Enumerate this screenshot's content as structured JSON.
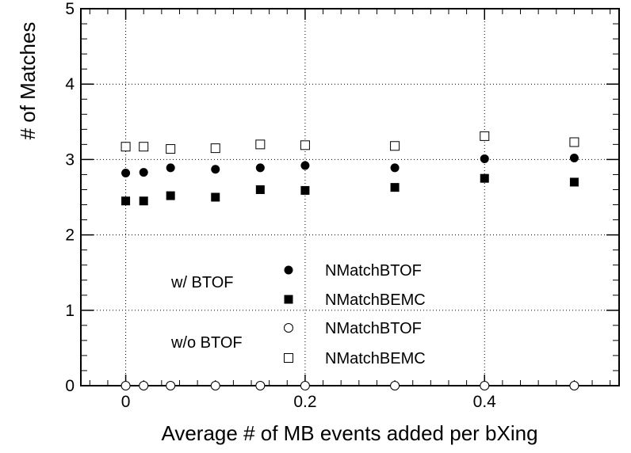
{
  "chart_data": {
    "type": "scatter",
    "xlabel": "Average # of MB events added per bXing",
    "ylabel": "# of Matches",
    "xlim": [
      -0.05,
      0.55
    ],
    "ylim": [
      0,
      5
    ],
    "x_ticks": [
      0,
      0.2,
      0.4
    ],
    "x_tick_labels": [
      "0",
      "0.2",
      "0.4"
    ],
    "y_ticks": [
      0,
      1,
      2,
      3,
      4,
      5
    ],
    "y_tick_labels": [
      "0",
      "1",
      "2",
      "3",
      "4",
      "5"
    ],
    "grid": true,
    "x": [
      0,
      0.02,
      0.05,
      0.1,
      0.15,
      0.2,
      0.3,
      0.4,
      0.5
    ],
    "series": [
      {
        "name": "NMatchBTOF",
        "marker": "filled-circle",
        "values": [
          2.82,
          2.83,
          2.89,
          2.87,
          2.89,
          2.92,
          2.89,
          3.01,
          3.02
        ]
      },
      {
        "name": "NMatchBEMC",
        "marker": "filled-square",
        "values": [
          2.45,
          2.45,
          2.52,
          2.5,
          2.6,
          2.59,
          2.63,
          2.75,
          2.7
        ]
      },
      {
        "name": "NMatchBTOF",
        "marker": "open-circle",
        "values": [
          0,
          0,
          0,
          0,
          0,
          0,
          0,
          0,
          0
        ]
      },
      {
        "name": "NMatchBEMC",
        "marker": "open-square",
        "values": [
          3.17,
          3.17,
          3.14,
          3.15,
          3.2,
          3.19,
          3.18,
          3.31,
          3.23
        ]
      }
    ],
    "legend": {
      "placement": "bottom-center",
      "groups": [
        {
          "label": "w/ BTOF",
          "series": [
            0,
            1
          ]
        },
        {
          "label": "w/o BTOF",
          "series": [
            2,
            3
          ]
        }
      ]
    },
    "colors": {
      "marker": "#000000",
      "grid": "#000000",
      "background": "#ffffff"
    }
  }
}
